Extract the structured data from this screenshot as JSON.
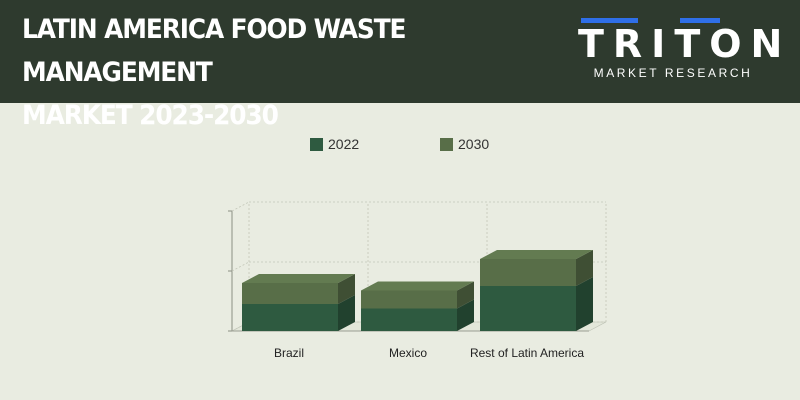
{
  "header": {
    "title_line1": "LATIN AMERICA FOOD WASTE MANAGEMENT",
    "title_line2": "MARKET 2023-2030"
  },
  "logo": {
    "word": "TRITON",
    "subtitle": "MARKET RESEARCH",
    "bar_color": "#2f6fe8"
  },
  "chart_data": {
    "type": "bar",
    "stacked": true,
    "three_d": true,
    "categories": [
      "Brazil",
      "Mexico",
      "Rest of Latin America"
    ],
    "series": [
      {
        "name": "2022",
        "values": [
          0.9,
          0.75,
          1.5
        ],
        "color": "#2e5a40"
      },
      {
        "name": "2030",
        "values": [
          1.6,
          1.35,
          2.4
        ],
        "color": "#586e48"
      }
    ],
    "ylim": [
      0,
      4
    ],
    "y_ticks": [
      0,
      2,
      4
    ],
    "grid": true,
    "legend": "top-center"
  }
}
